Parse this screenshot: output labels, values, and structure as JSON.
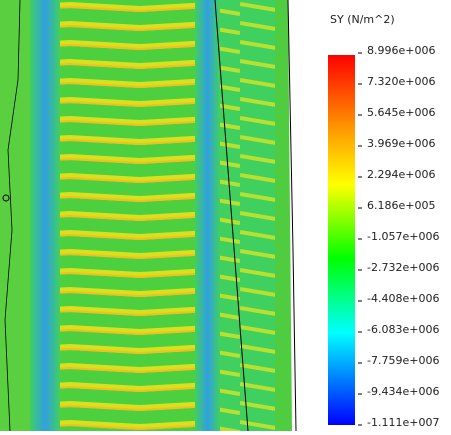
{
  "legend": {
    "title": "SY (N/m^2)",
    "labels": [
      "8.996e+006",
      "7.320e+006",
      "5.645e+006",
      "3.969e+006",
      "2.294e+006",
      "6.186e+005",
      "-1.057e+006",
      "-2.732e+006",
      "-4.408e+006",
      "-6.083e+006",
      "-7.759e+006",
      "-9.434e+006",
      "-1.111e+007"
    ]
  }
}
